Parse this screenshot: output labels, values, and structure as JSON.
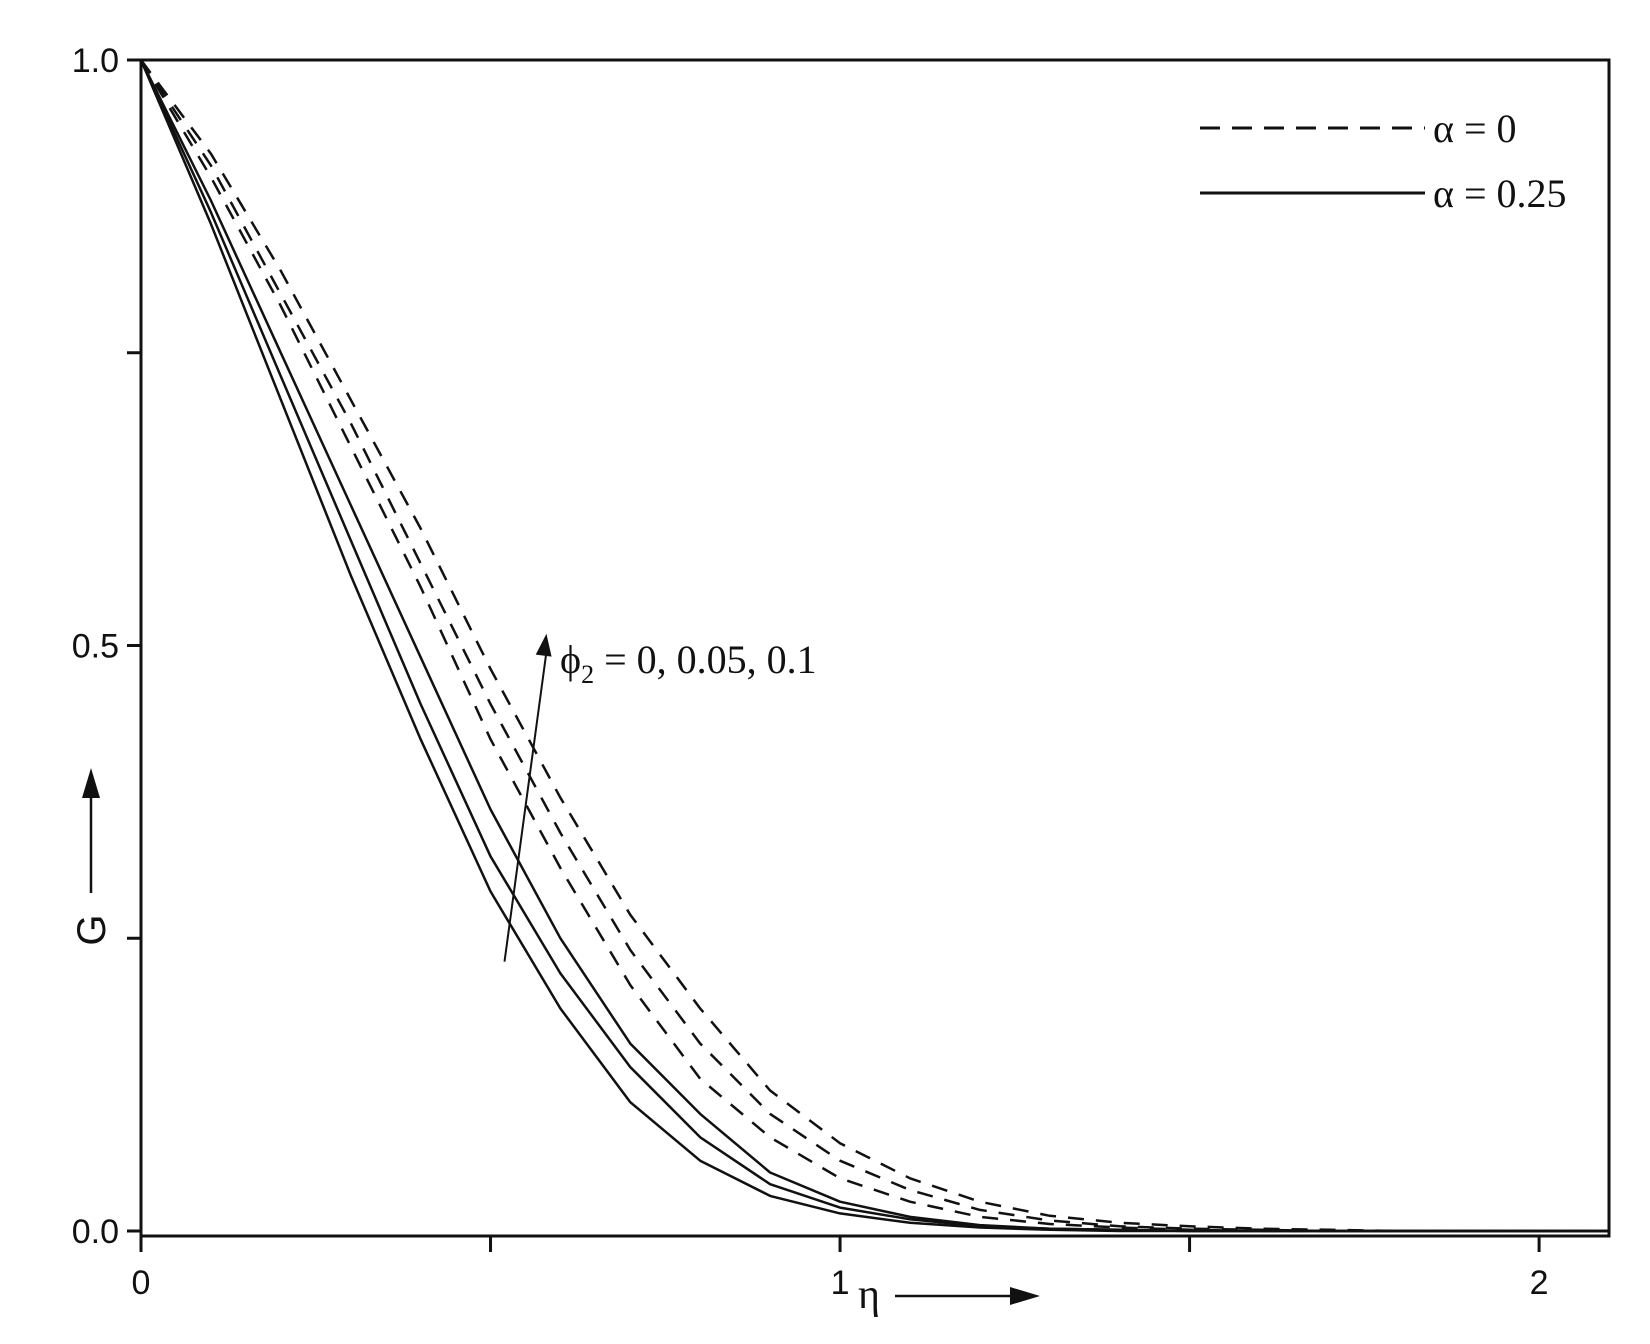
{
  "chart_data": {
    "type": "line",
    "xlabel": "η",
    "ylabel": "G",
    "xlim": [
      0,
      2.1
    ],
    "ylim": [
      0,
      1.0
    ],
    "x_ticks": [
      {
        "value": 0,
        "label": "0"
      },
      {
        "value": 0.5,
        "label": ""
      },
      {
        "value": 1,
        "label": "1"
      },
      {
        "value": 1.5,
        "label": ""
      },
      {
        "value": 2,
        "label": "2"
      }
    ],
    "y_ticks": [
      {
        "value": 0.0,
        "label": "0.0"
      },
      {
        "value": 0.25,
        "label": ""
      },
      {
        "value": 0.5,
        "label": "0.5"
      },
      {
        "value": 0.75,
        "label": ""
      },
      {
        "value": 1.0,
        "label": "1.0"
      }
    ],
    "legend": {
      "placement": "top-right",
      "entries": [
        {
          "label": "α = 0",
          "style": "dashed"
        },
        {
          "label": "α = 0.25",
          "style": "solid"
        }
      ]
    },
    "annotation": {
      "text_main": "ϕ",
      "text_sub": "2",
      "text_rest": " = 0, 0.05, 0.1",
      "arrow_from": [
        0.52,
        0.23
      ],
      "arrow_to": [
        0.58,
        0.51
      ]
    },
    "series": [
      {
        "style": "solid",
        "x": [
          0,
          0.1,
          0.2,
          0.3,
          0.4,
          0.5,
          0.6,
          0.7,
          0.8,
          0.9,
          1.0,
          1.1,
          1.2,
          1.3,
          1.4,
          1.5,
          1.6,
          1.7,
          1.8,
          1.9,
          2.0,
          2.1
        ],
        "y": [
          1.0,
          0.86,
          0.71,
          0.56,
          0.42,
          0.29,
          0.19,
          0.11,
          0.06,
          0.03,
          0.015,
          0.007,
          0.003,
          0.001,
          0.0,
          0.0,
          0.0,
          0.0,
          0.0,
          0.0,
          0.0,
          0.0
        ]
      },
      {
        "style": "solid",
        "x": [
          0,
          0.1,
          0.2,
          0.3,
          0.4,
          0.5,
          0.6,
          0.7,
          0.8,
          0.9,
          1.0,
          1.1,
          1.2,
          1.3,
          1.4,
          1.5,
          1.6,
          1.7,
          1.8,
          1.9,
          2.0,
          2.1
        ],
        "y": [
          1.0,
          0.87,
          0.73,
          0.59,
          0.45,
          0.32,
          0.22,
          0.14,
          0.08,
          0.04,
          0.02,
          0.01,
          0.004,
          0.002,
          0.001,
          0.0,
          0.0,
          0.0,
          0.0,
          0.0,
          0.0,
          0.0
        ]
      },
      {
        "style": "solid",
        "x": [
          0,
          0.1,
          0.2,
          0.3,
          0.4,
          0.5,
          0.6,
          0.7,
          0.8,
          0.9,
          1.0,
          1.1,
          1.2,
          1.3,
          1.4,
          1.5,
          1.6,
          1.7,
          1.8,
          1.9,
          2.0,
          2.1
        ],
        "y": [
          1.0,
          0.88,
          0.75,
          0.62,
          0.49,
          0.36,
          0.25,
          0.16,
          0.1,
          0.05,
          0.025,
          0.012,
          0.005,
          0.002,
          0.001,
          0.0,
          0.0,
          0.0,
          0.0,
          0.0,
          0.0,
          0.0
        ]
      },
      {
        "style": "dashed",
        "x": [
          0,
          0.1,
          0.2,
          0.3,
          0.4,
          0.5,
          0.6,
          0.7,
          0.8,
          0.9,
          1.0,
          1.1,
          1.2,
          1.3,
          1.4,
          1.5,
          1.6,
          1.7,
          1.8,
          1.9,
          2.0,
          2.1
        ],
        "y": [
          1.0,
          0.9,
          0.79,
          0.67,
          0.55,
          0.42,
          0.31,
          0.21,
          0.13,
          0.08,
          0.045,
          0.025,
          0.012,
          0.006,
          0.003,
          0.001,
          0.0,
          0.0,
          0.0,
          0.0,
          0.0,
          0.0
        ]
      },
      {
        "style": "dashed",
        "x": [
          0,
          0.1,
          0.2,
          0.3,
          0.4,
          0.5,
          0.6,
          0.7,
          0.8,
          0.9,
          1.0,
          1.1,
          1.2,
          1.3,
          1.4,
          1.5,
          1.6,
          1.7,
          1.8,
          1.9,
          2.0,
          2.1
        ],
        "y": [
          1.0,
          0.91,
          0.8,
          0.69,
          0.57,
          0.45,
          0.34,
          0.24,
          0.16,
          0.1,
          0.06,
          0.035,
          0.018,
          0.009,
          0.004,
          0.002,
          0.001,
          0.0,
          0.0,
          0.0,
          0.0,
          0.0
        ]
      },
      {
        "style": "dashed",
        "x": [
          0,
          0.1,
          0.2,
          0.3,
          0.4,
          0.5,
          0.6,
          0.7,
          0.8,
          0.9,
          1.0,
          1.1,
          1.2,
          1.3,
          1.4,
          1.5,
          1.6,
          1.7,
          1.8,
          1.9,
          2.0,
          2.1
        ],
        "y": [
          1.0,
          0.92,
          0.82,
          0.71,
          0.6,
          0.48,
          0.37,
          0.27,
          0.19,
          0.12,
          0.075,
          0.045,
          0.025,
          0.013,
          0.007,
          0.004,
          0.002,
          0.001,
          0.0,
          0.0,
          0.0,
          0.0
        ]
      }
    ]
  }
}
